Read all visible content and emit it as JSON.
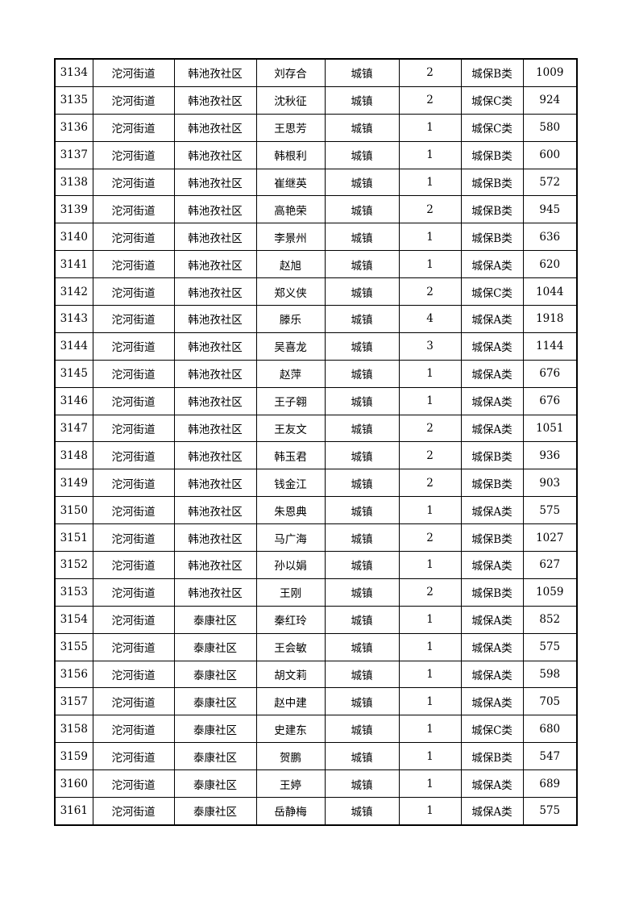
{
  "table": {
    "rows": [
      [
        "3134",
        "沱河街道",
        "韩池孜社区",
        "刘存合",
        "城镇",
        "2",
        "城保B类",
        "1009"
      ],
      [
        "3135",
        "沱河街道",
        "韩池孜社区",
        "沈秋征",
        "城镇",
        "2",
        "城保C类",
        "924"
      ],
      [
        "3136",
        "沱河街道",
        "韩池孜社区",
        "王思芳",
        "城镇",
        "1",
        "城保C类",
        "580"
      ],
      [
        "3137",
        "沱河街道",
        "韩池孜社区",
        "韩根利",
        "城镇",
        "1",
        "城保B类",
        "600"
      ],
      [
        "3138",
        "沱河街道",
        "韩池孜社区",
        "崔继英",
        "城镇",
        "1",
        "城保B类",
        "572"
      ],
      [
        "3139",
        "沱河街道",
        "韩池孜社区",
        "高艳荣",
        "城镇",
        "2",
        "城保B类",
        "945"
      ],
      [
        "3140",
        "沱河街道",
        "韩池孜社区",
        "李景州",
        "城镇",
        "1",
        "城保B类",
        "636"
      ],
      [
        "3141",
        "沱河街道",
        "韩池孜社区",
        "赵旭",
        "城镇",
        "1",
        "城保A类",
        "620"
      ],
      [
        "3142",
        "沱河街道",
        "韩池孜社区",
        "郑义侠",
        "城镇",
        "2",
        "城保C类",
        "1044"
      ],
      [
        "3143",
        "沱河街道",
        "韩池孜社区",
        "滕乐",
        "城镇",
        "4",
        "城保A类",
        "1918"
      ],
      [
        "3144",
        "沱河街道",
        "韩池孜社区",
        "吴喜龙",
        "城镇",
        "3",
        "城保A类",
        "1144"
      ],
      [
        "3145",
        "沱河街道",
        "韩池孜社区",
        "赵萍",
        "城镇",
        "1",
        "城保A类",
        "676"
      ],
      [
        "3146",
        "沱河街道",
        "韩池孜社区",
        "王子翱",
        "城镇",
        "1",
        "城保A类",
        "676"
      ],
      [
        "3147",
        "沱河街道",
        "韩池孜社区",
        "王友文",
        "城镇",
        "2",
        "城保A类",
        "1051"
      ],
      [
        "3148",
        "沱河街道",
        "韩池孜社区",
        "韩玉君",
        "城镇",
        "2",
        "城保B类",
        "936"
      ],
      [
        "3149",
        "沱河街道",
        "韩池孜社区",
        "钱金江",
        "城镇",
        "2",
        "城保B类",
        "903"
      ],
      [
        "3150",
        "沱河街道",
        "韩池孜社区",
        "朱恩典",
        "城镇",
        "1",
        "城保A类",
        "575"
      ],
      [
        "3151",
        "沱河街道",
        "韩池孜社区",
        "马广海",
        "城镇",
        "2",
        "城保B类",
        "1027"
      ],
      [
        "3152",
        "沱河街道",
        "韩池孜社区",
        "孙以娟",
        "城镇",
        "1",
        "城保A类",
        "627"
      ],
      [
        "3153",
        "沱河街道",
        "韩池孜社区",
        "王刚",
        "城镇",
        "2",
        "城保B类",
        "1059"
      ],
      [
        "3154",
        "沱河街道",
        "泰康社区",
        "秦红玲",
        "城镇",
        "1",
        "城保A类",
        "852"
      ],
      [
        "3155",
        "沱河街道",
        "泰康社区",
        "王会敏",
        "城镇",
        "1",
        "城保A类",
        "575"
      ],
      [
        "3156",
        "沱河街道",
        "泰康社区",
        "胡文莉",
        "城镇",
        "1",
        "城保A类",
        "598"
      ],
      [
        "3157",
        "沱河街道",
        "泰康社区",
        "赵中建",
        "城镇",
        "1",
        "城保A类",
        "705"
      ],
      [
        "3158",
        "沱河街道",
        "泰康社区",
        "史建东",
        "城镇",
        "1",
        "城保C类",
        "680"
      ],
      [
        "3159",
        "沱河街道",
        "泰康社区",
        "贺鹏",
        "城镇",
        "1",
        "城保B类",
        "547"
      ],
      [
        "3160",
        "沱河街道",
        "泰康社区",
        "王婷",
        "城镇",
        "1",
        "城保A类",
        "689"
      ],
      [
        "3161",
        "沱河街道",
        "泰康社区",
        "岳静梅",
        "城镇",
        "1",
        "城保A类",
        "575"
      ]
    ]
  }
}
